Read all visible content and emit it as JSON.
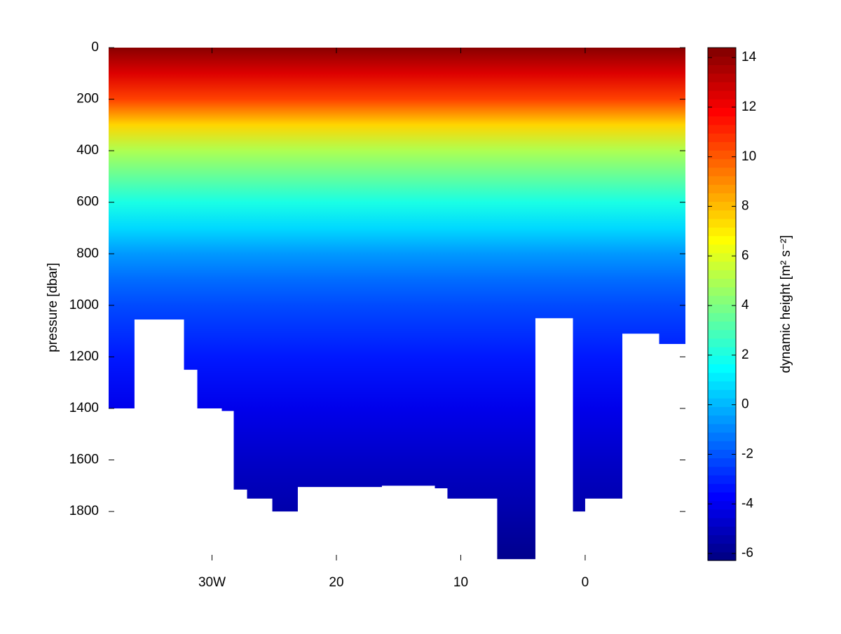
{
  "chart_data": {
    "type": "section",
    "xlabel": null,
    "ylabel": "pressure [dbar]",
    "colorbar_label": "dynamic height [m² s⁻²]",
    "xlim": [
      -38.31,
      8.06
    ],
    "xticks": [
      {
        "value": -30,
        "label": "30W"
      },
      {
        "value": -20,
        "label": "20"
      },
      {
        "value": -10,
        "label": "10"
      },
      0
    ],
    "ylim": [
      0,
      1990
    ],
    "yticks": [
      0,
      200,
      400,
      600,
      800,
      1000,
      1200,
      1400,
      1600,
      1800
    ],
    "clim": [
      -6.28,
      14.4
    ],
    "cticks": [
      -6,
      -4,
      -2,
      0,
      2,
      4,
      6,
      8,
      10,
      12,
      14
    ],
    "colormap": "jet",
    "profile": {
      "pressure": [
        0,
        100,
        200,
        300,
        400,
        500,
        600,
        700,
        800,
        900,
        1000,
        1200,
        1400,
        1600,
        1800,
        1990
      ],
      "values": [
        14.2,
        12.5,
        10.5,
        7.5,
        5,
        3.5,
        2,
        0.7,
        -0.6,
        -1.5,
        -2.2,
        -3.2,
        -4.1,
        -4.8,
        -5.4,
        -6
      ]
    },
    "bottom": {
      "edges": [
        -38.31,
        -36.23,
        -32.28,
        -31.21,
        -29.24,
        -28.28,
        -27.21,
        -25.18,
        -23.1,
        -16.34,
        -12.11,
        -11.1,
        -7.1,
        -4.0,
        -1.01,
        0,
        2.99,
        5.92,
        8.06
      ],
      "pressure": [
        1400,
        1055,
        1250,
        1400,
        1410,
        1715,
        1750,
        1800,
        1705,
        1700,
        1710,
        1750,
        1985,
        1050,
        1800,
        1750,
        1110,
        1150
      ]
    }
  }
}
